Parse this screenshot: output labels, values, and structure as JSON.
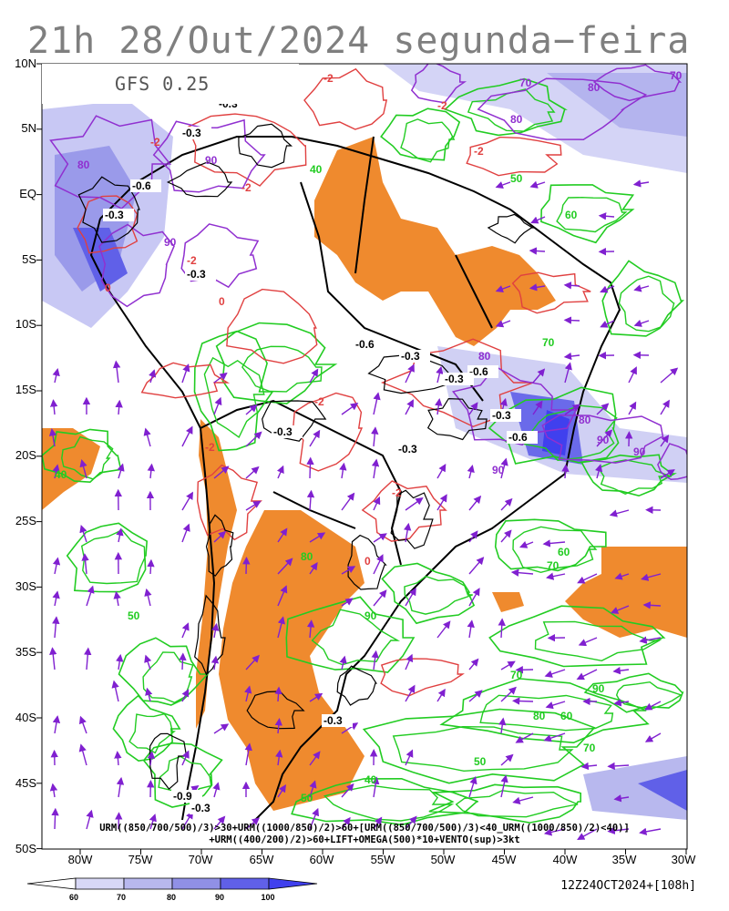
{
  "title": "21h 28/Out/2024 segunda−feira",
  "model": "GFS 0.25",
  "lat_labels": [
    "10N",
    "5N",
    "EQ",
    "5S",
    "10S",
    "15S",
    "20S",
    "25S",
    "30S",
    "35S",
    "40S",
    "45S",
    "50S"
  ],
  "lon_labels": [
    "80W",
    "75W",
    "70W",
    "65W",
    "60W",
    "55W",
    "50W",
    "45W",
    "40W",
    "35W",
    "30W"
  ],
  "formula_line1": "URM((850/700/500)/3)>30+URM((1000/850)/2)>60+[URM((850/700/500)/3)<40_URM((1000/850)/2)<40)]",
  "formula_line2": "+URM((400/200)/2)>60+LIFT+OMEGA(500)*10+VENTO(sup)>3kt",
  "run_info": "12Z24OCT2024+[108h]",
  "colorbar": {
    "labels": [
      "60",
      "70",
      "80",
      "90",
      "100"
    ],
    "colors": [
      "#ffffff",
      "#d8d8f6",
      "#b8b8ee",
      "#9090e6",
      "#6060e8",
      "#4040ee"
    ]
  },
  "colors": {
    "dry_fill": "#ef8a2e",
    "humid_shading": "#b0b0f0",
    "green_contours": "#22cc22",
    "red_contours": "#e04040",
    "purple_contours": "#9030d0",
    "wind_vectors": "#8020d0"
  },
  "contour_labels": {
    "green": [
      "40",
      "50",
      "60",
      "70",
      "80",
      "90",
      "60",
      "70",
      "50",
      "40",
      "50",
      "60",
      "70",
      "80",
      "90",
      "70",
      "50",
      "40"
    ],
    "purple": [
      "80",
      "70",
      "80",
      "90",
      "80",
      "90",
      "80",
      "90",
      "90",
      "80",
      "70",
      "90"
    ],
    "red": [
      "-2",
      "-2",
      "-2",
      "-2",
      "-2",
      "0",
      "-2",
      "-2",
      "-2",
      "0",
      "-2",
      "0"
    ],
    "black": [
      "-0.3",
      "-0.3",
      "-0.6",
      "-0.3",
      "-0.3",
      "-0.6",
      "-0.3",
      "-0.6",
      "-0.3",
      "-0.3",
      "-0.3",
      "-0.3",
      "-0.6",
      "-0.3",
      "-0.9",
      "-0.3"
    ]
  }
}
